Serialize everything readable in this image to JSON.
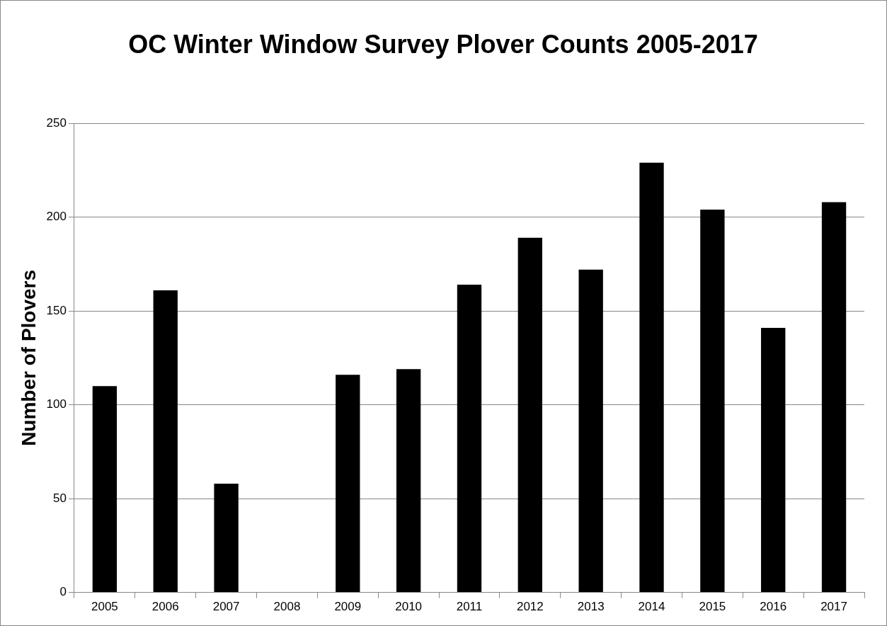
{
  "chart_data": {
    "type": "bar",
    "title": "OC Winter Window Survey Plover Counts 2005-2017",
    "ylabel": "Number of Plovers",
    "categories": [
      "2005",
      "2006",
      "2007",
      "2008",
      "2009",
      "2010",
      "2011",
      "2012",
      "2013",
      "2014",
      "2015",
      "2016",
      "2017"
    ],
    "values": [
      110,
      161,
      58,
      null,
      116,
      119,
      164,
      189,
      172,
      229,
      204,
      141,
      208
    ],
    "color": "#000000",
    "ylim": [
      0,
      250
    ],
    "yticks": [
      0,
      50,
      100,
      150,
      200,
      250
    ],
    "grid": "y"
  }
}
